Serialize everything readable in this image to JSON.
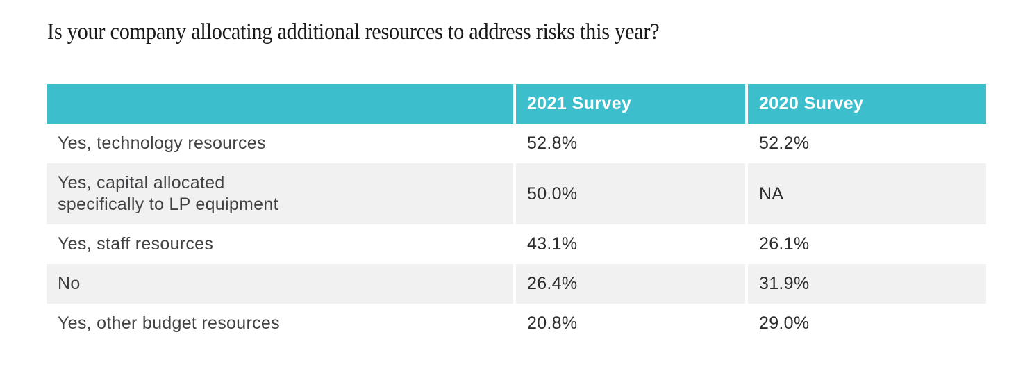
{
  "title": "Is your company allocating additional resources to address risks this year?",
  "table": {
    "columns": [
      "",
      "2021 Survey",
      "2020 Survey"
    ],
    "rows": [
      {
        "label": "Yes, technology resources",
        "v2021": "52.8%",
        "v2020": "52.2%"
      },
      {
        "label": "Yes, capital allocated\nspecifically to LP equipment",
        "v2021": "50.0%",
        "v2020": "NA"
      },
      {
        "label": "Yes, staff resources",
        "v2021": "43.1%",
        "v2020": "26.1%"
      },
      {
        "label": "No",
        "v2021": "26.4%",
        "v2020": "31.9%"
      },
      {
        "label": "Yes, other budget resources",
        "v2021": "20.8%",
        "v2020": "29.0%"
      }
    ]
  },
  "colors": {
    "header_bg": "#3DBECD",
    "header_text": "#FFFFFF",
    "row_bg": "#FFFFFF",
    "row_alt_bg": "#F1F1F2",
    "label_text": "#414144",
    "value_text": "#2D2D2F",
    "title_text": "#1A1A1A"
  },
  "chart_data": {
    "type": "table",
    "title": "Is your company allocating additional resources to address risks this year?",
    "categories": [
      "Yes, technology resources",
      "Yes, capital allocated specifically to LP equipment",
      "Yes, staff resources",
      "No",
      "Yes, other budget resources"
    ],
    "series": [
      {
        "name": "2021 Survey",
        "values": [
          52.8,
          50.0,
          43.1,
          26.4,
          20.8
        ]
      },
      {
        "name": "2020 Survey",
        "values": [
          52.2,
          null,
          26.1,
          31.9,
          29.0
        ]
      }
    ],
    "na_display": "NA",
    "layout_hints": {
      "header_position": "top",
      "alternating_rows": true,
      "units": "percent"
    }
  }
}
